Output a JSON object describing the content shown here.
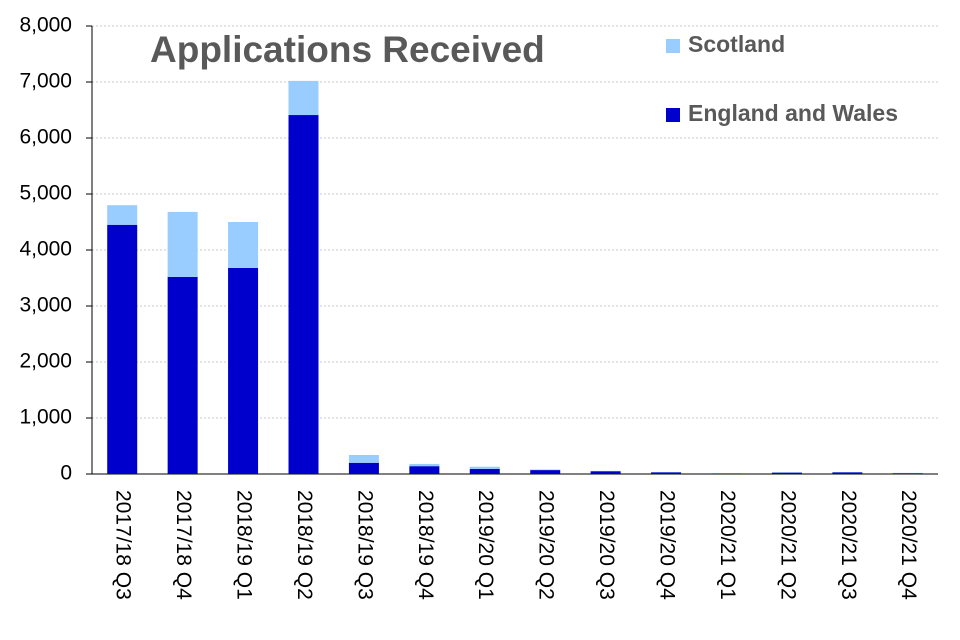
{
  "chart_data": {
    "type": "stacked_bar",
    "title": "Applications Received",
    "categories": [
      "2017/18 Q3",
      "2017/18 Q4",
      "2018/19 Q1",
      "2018/19 Q2",
      "2018/19 Q3",
      "2018/19 Q4",
      "2019/20 Q1",
      "2019/20 Q2",
      "2019/20 Q3",
      "2019/20 Q4",
      "2020/21 Q1",
      "2020/21 Q2",
      "2020/21 Q3",
      "2020/21 Q4"
    ],
    "series": [
      {
        "name": "England and Wales",
        "color": "#0000cc",
        "values": [
          4450,
          3520,
          3680,
          6410,
          200,
          140,
          90,
          70,
          50,
          30,
          10,
          25,
          30,
          15
        ]
      },
      {
        "name": "Scotland",
        "color": "#99ccff",
        "values": [
          350,
          1160,
          820,
          610,
          140,
          40,
          40,
          10,
          5,
          5,
          5,
          5,
          5,
          5
        ]
      }
    ],
    "ylim": [
      0,
      8000
    ],
    "yticks": [
      0,
      {
        "value": 1000,
        "label": "1,000"
      },
      {
        "value": 2000,
        "label": "2,000"
      },
      {
        "value": 3000,
        "label": "3,000"
      },
      {
        "value": 4000,
        "label": "4,000"
      },
      {
        "value": 5000,
        "label": "5,000"
      },
      {
        "value": 6000,
        "label": "6,000"
      },
      {
        "value": 7000,
        "label": "7,000"
      },
      {
        "value": 8000,
        "label": "8,000"
      }
    ],
    "grid": true,
    "legend": "top-right"
  }
}
